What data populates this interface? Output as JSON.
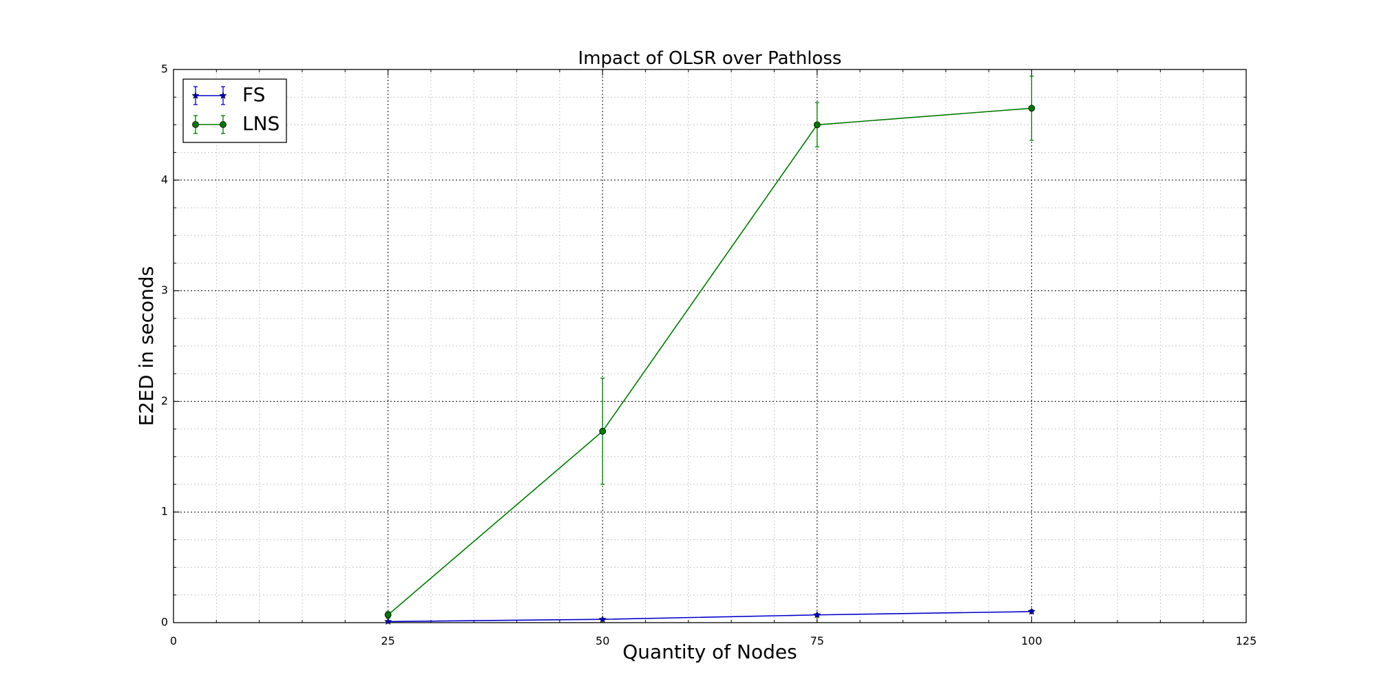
{
  "chart_data": {
    "type": "line",
    "title": "Impact of OLSR over Pathloss",
    "xlabel": "Quantity of Nodes",
    "ylabel": "E2ED in seconds",
    "xlim": [
      0,
      125
    ],
    "ylim": [
      0,
      5
    ],
    "x_major_ticks": [
      0,
      25,
      50,
      75,
      100,
      125
    ],
    "y_major_ticks": [
      0,
      1,
      2,
      3,
      4,
      5
    ],
    "x_minor_step": 5,
    "y_minor_step": 0.25,
    "grid": true,
    "legend_position": "top-left",
    "series": [
      {
        "name": "FS",
        "color": "#0000cc",
        "marker": "star",
        "x": [
          25,
          50,
          75,
          100
        ],
        "y": [
          0.01,
          0.03,
          0.07,
          0.1
        ],
        "yerr": [
          0.005,
          0.005,
          0.01,
          0.015
        ]
      },
      {
        "name": "LNS",
        "color": "#007700",
        "marker": "circle",
        "x": [
          25,
          50,
          75,
          100
        ],
        "y": [
          0.07,
          1.73,
          4.5,
          4.65
        ],
        "yerr": [
          0.03,
          0.48,
          0.2,
          0.29
        ]
      }
    ]
  }
}
